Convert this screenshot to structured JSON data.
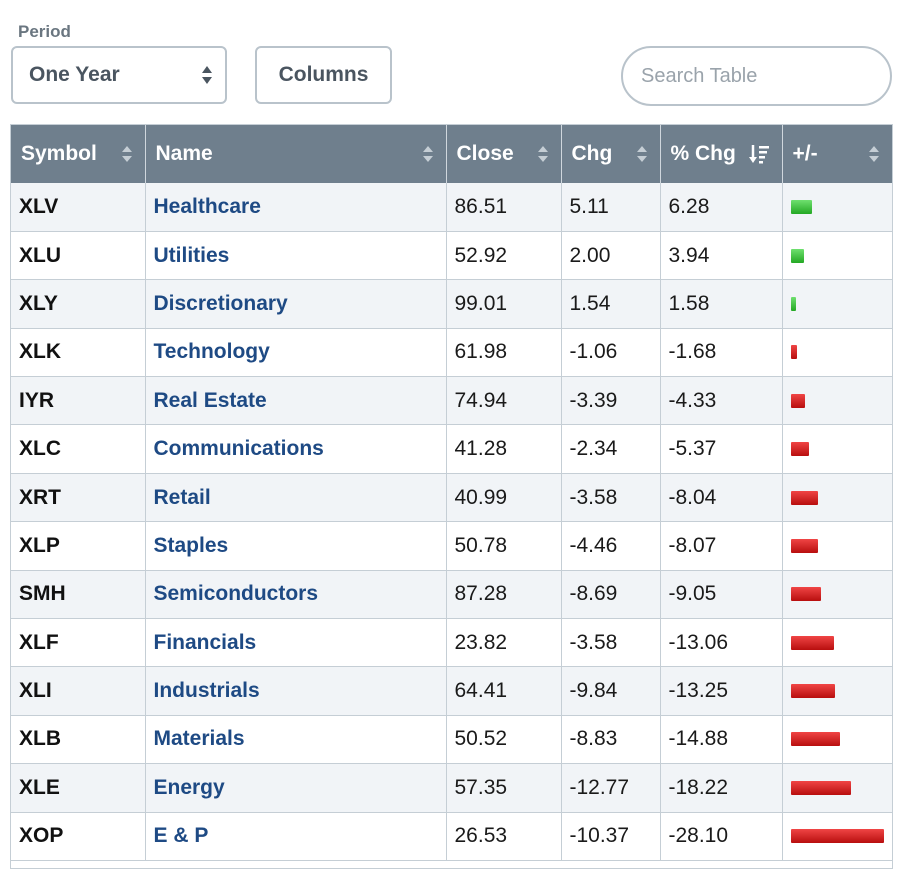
{
  "controls": {
    "period_label": "Period",
    "period_value": "One Year",
    "columns_label": "Columns",
    "search_placeholder": "Search Table"
  },
  "table": {
    "headers": {
      "symbol": "Symbol",
      "name": "Name",
      "close": "Close",
      "chg": "Chg",
      "pct_chg": "% Chg",
      "bar": "+/-"
    },
    "sorted_column": "pct_chg",
    "sort_direction": "descending",
    "colors": {
      "positive": "#24a824",
      "negative": "#c81414"
    },
    "rows": [
      {
        "symbol": "XLV",
        "name": "Healthcare",
        "close": "86.51",
        "chg": "5.11",
        "pct_chg": "6.28",
        "pct_value": 6.28
      },
      {
        "symbol": "XLU",
        "name": "Utilities",
        "close": "52.92",
        "chg": "2.00",
        "pct_chg": "3.94",
        "pct_value": 3.94
      },
      {
        "symbol": "XLY",
        "name": "Discretionary",
        "close": "99.01",
        "chg": "1.54",
        "pct_chg": "1.58",
        "pct_value": 1.58
      },
      {
        "symbol": "XLK",
        "name": "Technology",
        "close": "61.98",
        "chg": "-1.06",
        "pct_chg": "-1.68",
        "pct_value": -1.68
      },
      {
        "symbol": "IYR",
        "name": "Real Estate",
        "close": "74.94",
        "chg": "-3.39",
        "pct_chg": "-4.33",
        "pct_value": -4.33
      },
      {
        "symbol": "XLC",
        "name": "Communications",
        "close": "41.28",
        "chg": "-2.34",
        "pct_chg": "-5.37",
        "pct_value": -5.37
      },
      {
        "symbol": "XRT",
        "name": "Retail",
        "close": "40.99",
        "chg": "-3.58",
        "pct_chg": "-8.04",
        "pct_value": -8.04
      },
      {
        "symbol": "XLP",
        "name": "Staples",
        "close": "50.78",
        "chg": "-4.46",
        "pct_chg": "-8.07",
        "pct_value": -8.07
      },
      {
        "symbol": "SMH",
        "name": "Semiconductors",
        "close": "87.28",
        "chg": "-8.69",
        "pct_chg": "-9.05",
        "pct_value": -9.05
      },
      {
        "symbol": "XLF",
        "name": "Financials",
        "close": "23.82",
        "chg": "-3.58",
        "pct_chg": "-13.06",
        "pct_value": -13.06
      },
      {
        "symbol": "XLI",
        "name": "Industrials",
        "close": "64.41",
        "chg": "-9.84",
        "pct_chg": "-13.25",
        "pct_value": -13.25
      },
      {
        "symbol": "XLB",
        "name": "Materials",
        "close": "50.52",
        "chg": "-8.83",
        "pct_chg": "-14.88",
        "pct_value": -14.88
      },
      {
        "symbol": "XLE",
        "name": "Energy",
        "close": "57.35",
        "chg": "-12.77",
        "pct_chg": "-18.22",
        "pct_value": -18.22
      },
      {
        "symbol": "XOP",
        "name": "E & P",
        "close": "26.53",
        "chg": "-10.37",
        "pct_chg": "-28.10",
        "pct_value": -28.1
      }
    ]
  }
}
